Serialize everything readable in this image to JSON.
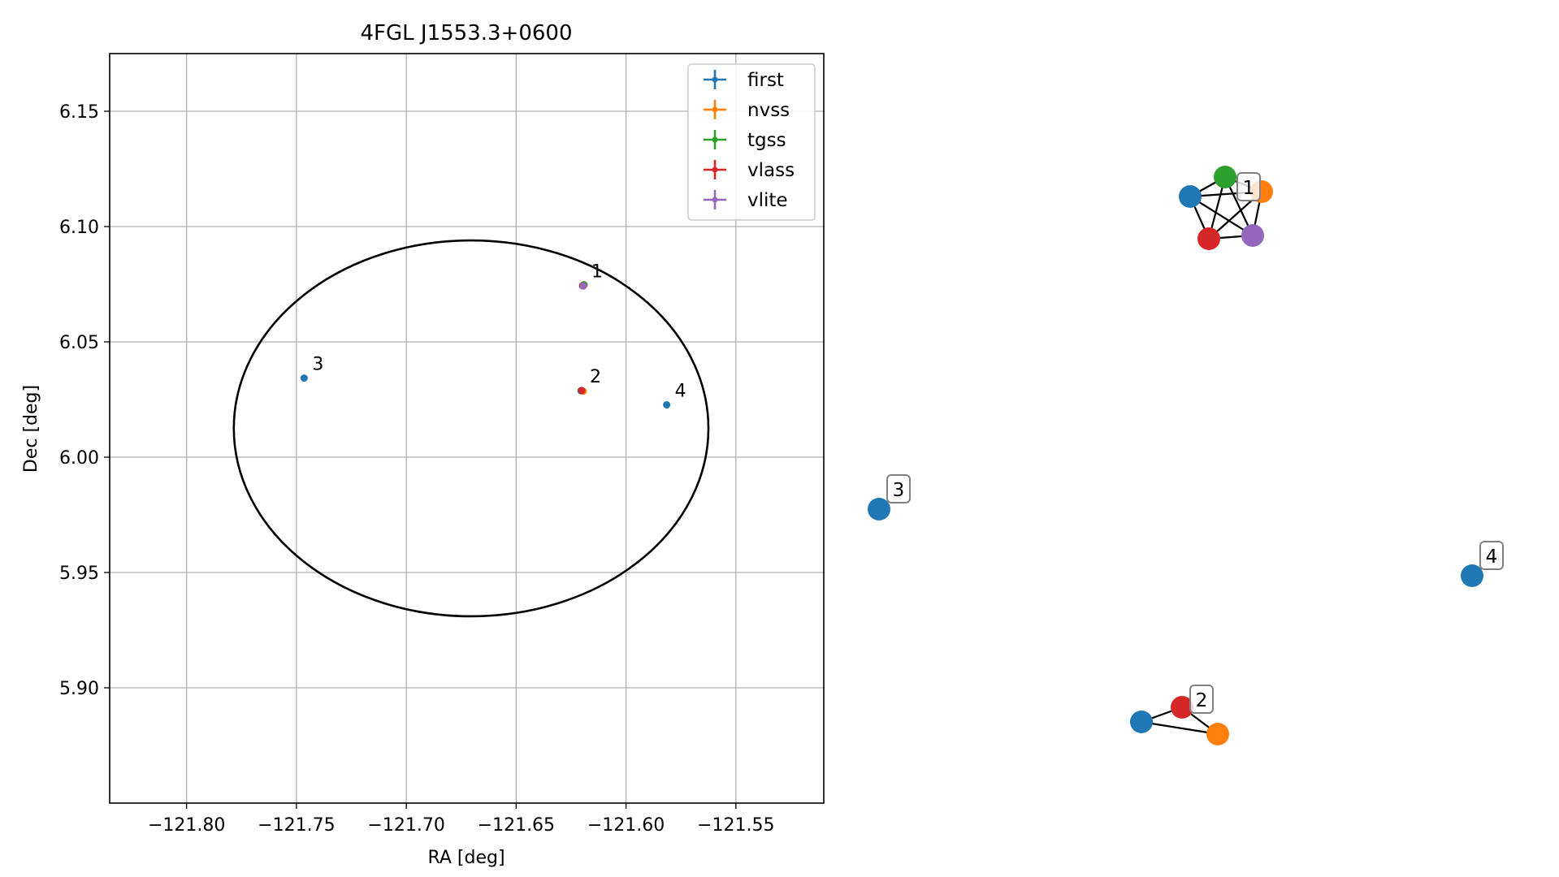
{
  "figure": {
    "background": "#ffffff"
  },
  "chart_data": [
    {
      "type": "scatter",
      "title": "4FGL J1553.3+0600",
      "xlabel": "RA [deg]",
      "ylabel": "Dec [deg]",
      "xlim": [
        -121.835,
        -121.51
      ],
      "ylim": [
        5.85,
        6.175
      ],
      "xticks": [
        -121.8,
        -121.75,
        -121.7,
        -121.65,
        -121.6,
        -121.55
      ],
      "xtick_labels": [
        "−121.80",
        "−121.75",
        "−121.70",
        "−121.65",
        "−121.60",
        "−121.55"
      ],
      "yticks": [
        5.9,
        5.95,
        6.0,
        6.05,
        6.1,
        6.15
      ],
      "ytick_labels": [
        "5.90",
        "5.95",
        "6.00",
        "6.05",
        "6.10",
        "6.15"
      ],
      "grid": true,
      "legend_position": "top-right",
      "ellipse": {
        "center_x": -121.6705,
        "center_y": 6.0125,
        "radius_x": 0.108,
        "radius_y": 0.0815,
        "color": "#000000"
      },
      "series": [
        {
          "name": "first",
          "color": "#1f77b4",
          "points": [
            [
              -121.6195,
              6.0745
            ],
            [
              -121.6205,
              6.0288
            ],
            [
              -121.7465,
              6.0343
            ],
            [
              -121.5815,
              6.0227
            ]
          ]
        },
        {
          "name": "nvss",
          "color": "#ff7f0e",
          "points": [
            [
              -121.619,
              6.0747
            ],
            [
              -121.6195,
              6.0286
            ]
          ]
        },
        {
          "name": "tgss",
          "color": "#2ca02c",
          "points": [
            [
              -121.6192,
              6.0748
            ]
          ]
        },
        {
          "name": "vlass",
          "color": "#d62728",
          "points": [
            [
              -121.6198,
              6.0743
            ],
            [
              -121.6202,
              6.0289
            ]
          ]
        },
        {
          "name": "vlite",
          "color": "#9467bd",
          "points": [
            [
              -121.6195,
              6.0742
            ]
          ]
        }
      ],
      "annotations": [
        {
          "text": "1",
          "x": -121.6195,
          "y": 6.0745
        },
        {
          "text": "2",
          "x": -121.6202,
          "y": 6.0288
        },
        {
          "text": "3",
          "x": -121.7465,
          "y": 6.0343
        },
        {
          "text": "4",
          "x": -121.5815,
          "y": 6.0227
        }
      ]
    },
    {
      "type": "network",
      "nodes": [
        {
          "id": "g1-first",
          "color": "#1f77b4"
        },
        {
          "id": "g1-tgss",
          "color": "#2ca02c"
        },
        {
          "id": "g1-nvss",
          "color": "#ff7f0e"
        },
        {
          "id": "g1-vlass",
          "color": "#d62728"
        },
        {
          "id": "g1-vlite",
          "color": "#9467bd"
        },
        {
          "id": "g2-first",
          "color": "#1f77b4"
        },
        {
          "id": "g2-vlass",
          "color": "#d62728"
        },
        {
          "id": "g2-nvss",
          "color": "#ff7f0e"
        },
        {
          "id": "g3-first",
          "color": "#1f77b4"
        },
        {
          "id": "g4-first",
          "color": "#1f77b4"
        }
      ],
      "edges": [
        [
          "g1-first",
          "g1-tgss"
        ],
        [
          "g1-first",
          "g1-nvss"
        ],
        [
          "g1-first",
          "g1-vlass"
        ],
        [
          "g1-first",
          "g1-vlite"
        ],
        [
          "g1-tgss",
          "g1-nvss"
        ],
        [
          "g1-tgss",
          "g1-vlass"
        ],
        [
          "g1-tgss",
          "g1-vlite"
        ],
        [
          "g1-nvss",
          "g1-vlass"
        ],
        [
          "g1-nvss",
          "g1-vlite"
        ],
        [
          "g1-vlass",
          "g1-vlite"
        ],
        [
          "g2-first",
          "g2-vlass"
        ],
        [
          "g2-first",
          "g2-nvss"
        ],
        [
          "g2-vlass",
          "g2-nvss"
        ]
      ],
      "group_labels": [
        "1",
        "2",
        "3",
        "4"
      ]
    }
  ]
}
